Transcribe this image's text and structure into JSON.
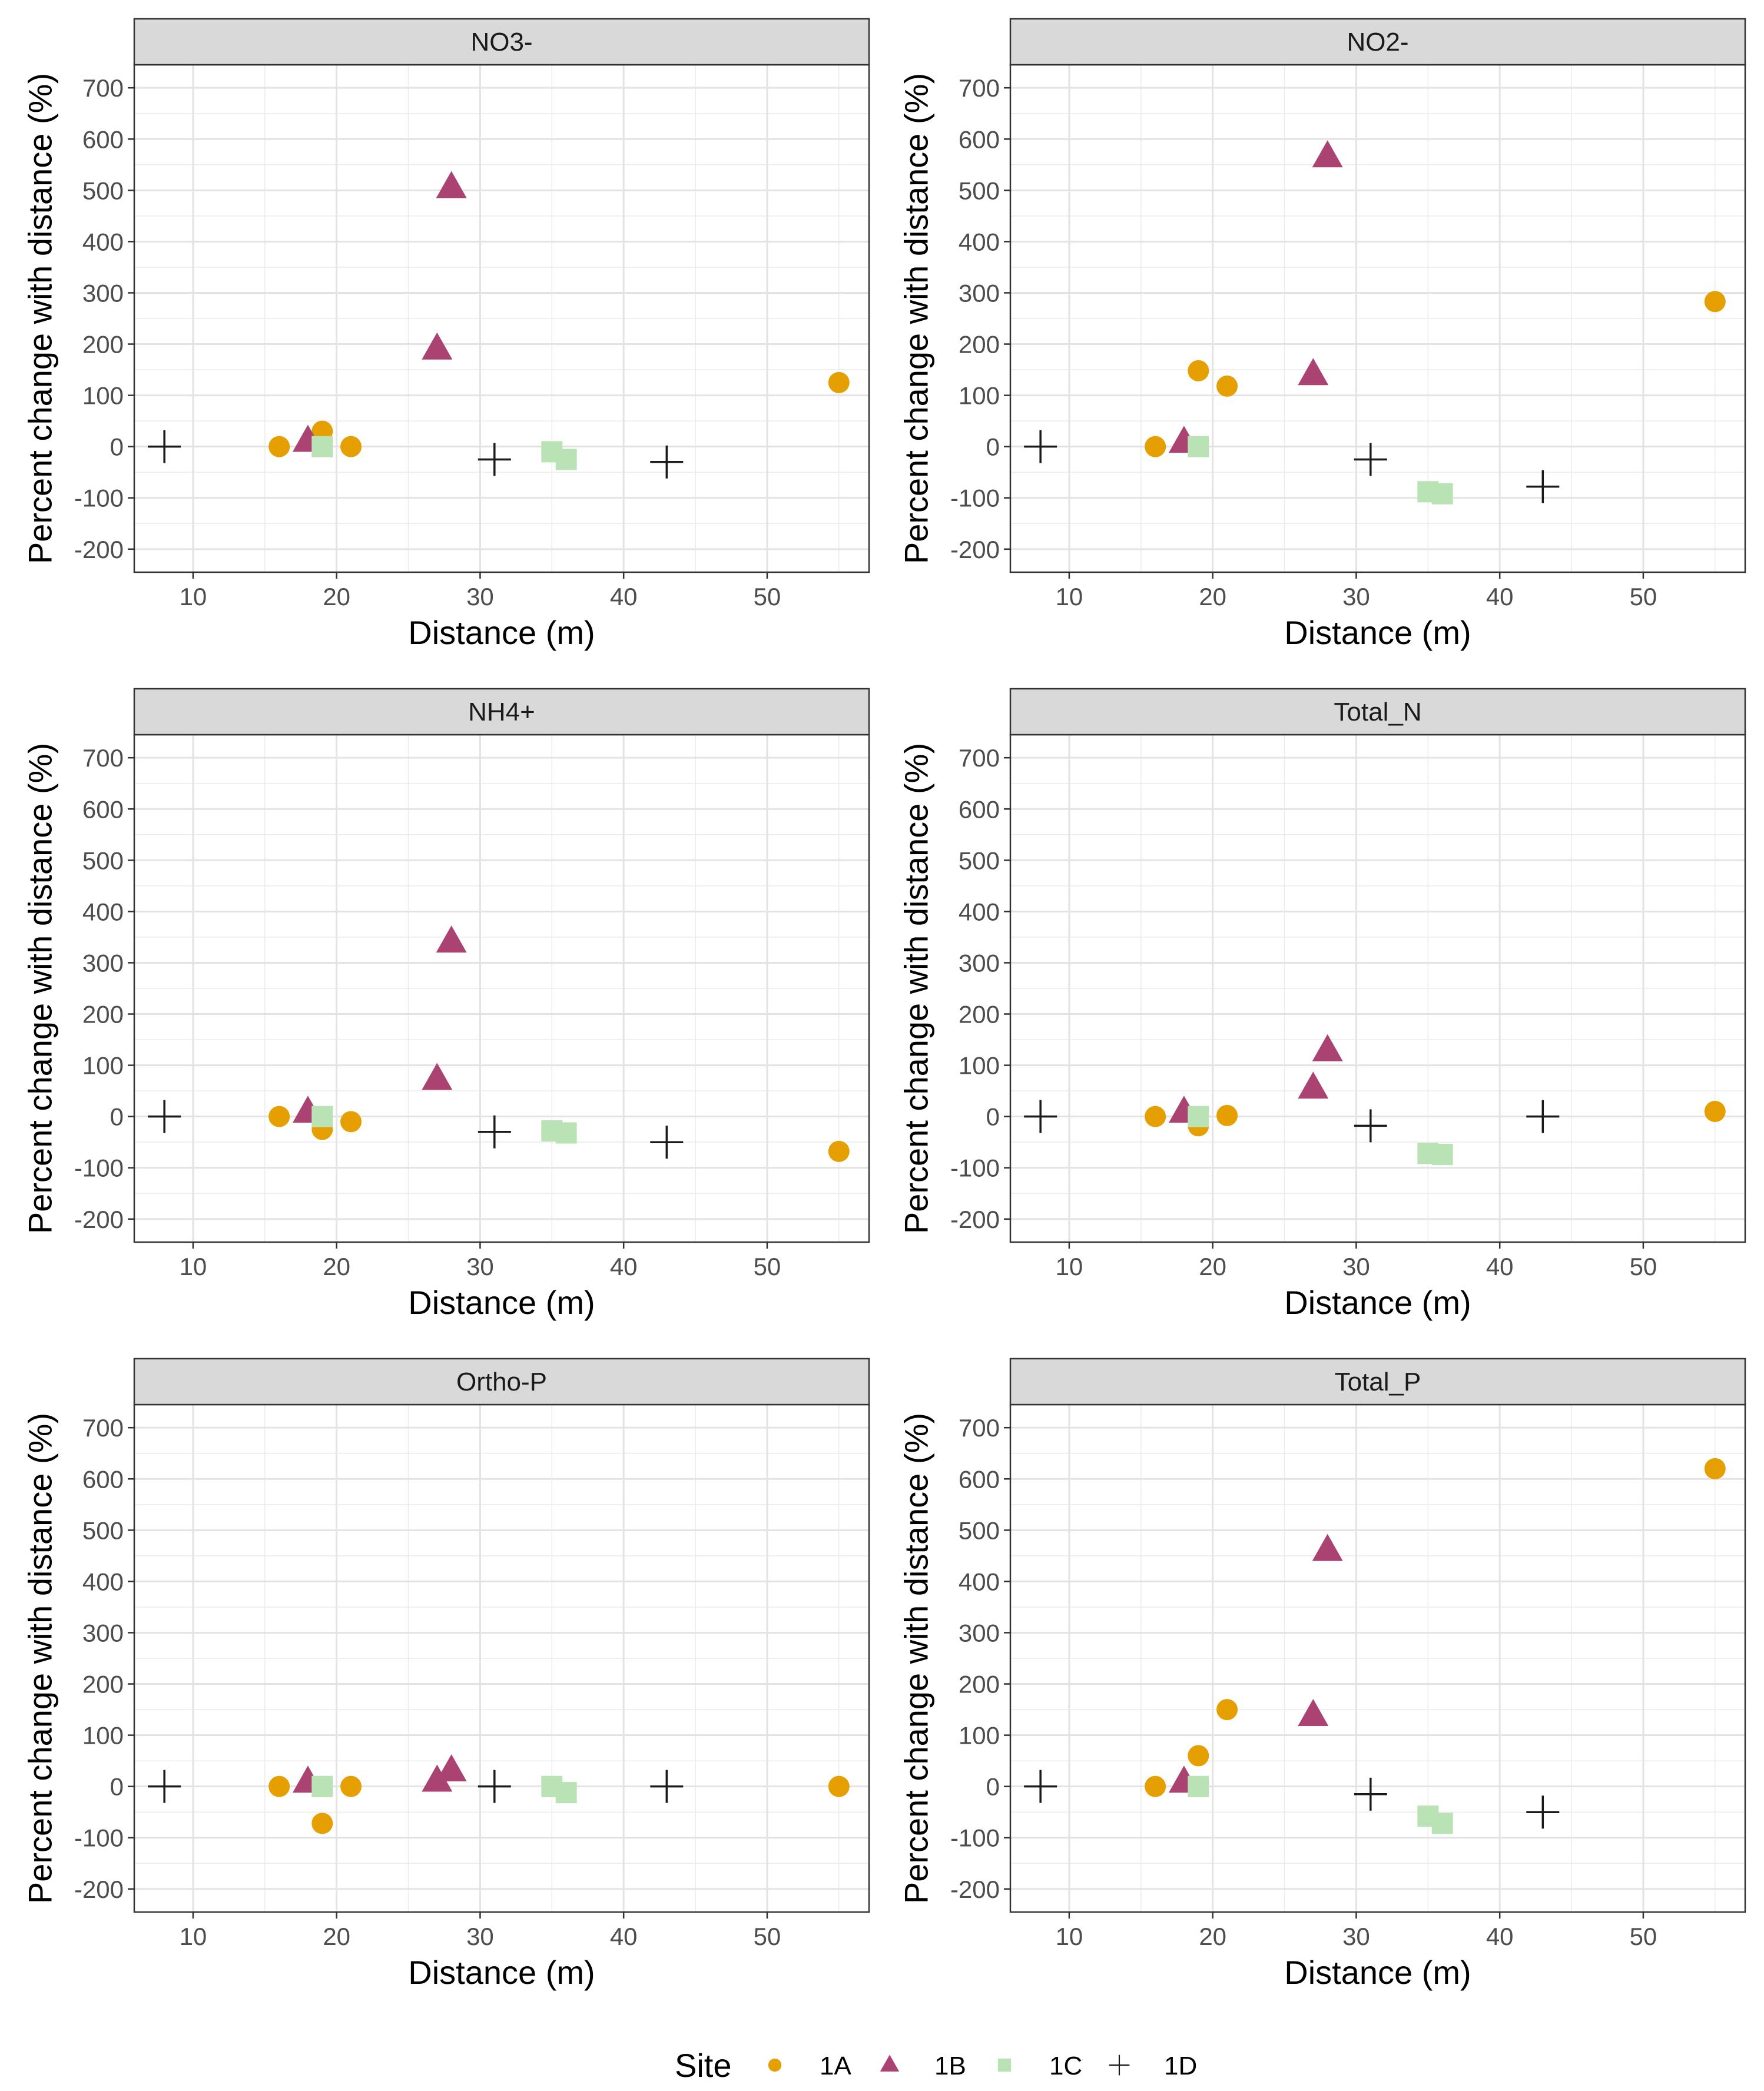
{
  "chart_data": {
    "type": "scatter",
    "facet_layout": "3 rows x 2 columns",
    "xlabel": "Distance (m)",
    "ylabel": "Percent change with distance (%)",
    "xlim": [
      5.9,
      57.1
    ],
    "ylim": [
      -245,
      745
    ],
    "x_ticks": [
      10,
      20,
      30,
      40,
      50
    ],
    "y_ticks": [
      -200,
      -100,
      0,
      100,
      200,
      300,
      400,
      500,
      600,
      700
    ],
    "grid": true,
    "legend": {
      "title": "Site",
      "position": "bottom",
      "entries": [
        {
          "site": "1A",
          "shape": "circle",
          "color": "#E69F00"
        },
        {
          "site": "1B",
          "shape": "triangle",
          "color": "#AA4371"
        },
        {
          "site": "1C",
          "shape": "square",
          "color": "#B9E3B4"
        },
        {
          "site": "1D",
          "shape": "plus",
          "color": "#1a1a1a"
        }
      ]
    },
    "panels": [
      {
        "title": "NO3-",
        "series": [
          {
            "site": "1A",
            "points": [
              [
                16,
                0
              ],
              [
                19,
                30
              ],
              [
                21,
                0
              ],
              [
                55,
                125
              ]
            ]
          },
          {
            "site": "1B",
            "points": [
              [
                18,
                10
              ],
              [
                27,
                190
              ],
              [
                28,
                505
              ]
            ]
          },
          {
            "site": "1C",
            "points": [
              [
                19,
                0
              ],
              [
                35,
                -10
              ],
              [
                36,
                -25
              ]
            ]
          },
          {
            "site": "1D",
            "points": [
              [
                8,
                0
              ],
              [
                31,
                -25
              ],
              [
                43,
                -30
              ]
            ]
          }
        ]
      },
      {
        "title": "NO2-",
        "series": [
          {
            "site": "1A",
            "points": [
              [
                16,
                0
              ],
              [
                19,
                148
              ],
              [
                21,
                118
              ],
              [
                55,
                283
              ]
            ]
          },
          {
            "site": "1B",
            "points": [
              [
                18,
                8
              ],
              [
                27,
                140
              ],
              [
                28,
                565
              ]
            ]
          },
          {
            "site": "1C",
            "points": [
              [
                19,
                0
              ],
              [
                35,
                -88
              ],
              [
                36,
                -92
              ]
            ]
          },
          {
            "site": "1D",
            "points": [
              [
                8,
                0
              ],
              [
                31,
                -25
              ],
              [
                43,
                -78
              ]
            ]
          }
        ]
      },
      {
        "title": "NH4+",
        "series": [
          {
            "site": "1A",
            "points": [
              [
                16,
                0
              ],
              [
                19,
                -25
              ],
              [
                21,
                -10
              ],
              [
                55,
                -68
              ]
            ]
          },
          {
            "site": "1B",
            "points": [
              [
                18,
                8
              ],
              [
                27,
                72
              ],
              [
                28,
                340
              ]
            ]
          },
          {
            "site": "1C",
            "points": [
              [
                19,
                0
              ],
              [
                35,
                -28
              ],
              [
                36,
                -32
              ]
            ]
          },
          {
            "site": "1D",
            "points": [
              [
                8,
                0
              ],
              [
                31,
                -30
              ],
              [
                43,
                -50
              ]
            ]
          }
        ]
      },
      {
        "title": "Total_N",
        "series": [
          {
            "site": "1A",
            "points": [
              [
                16,
                0
              ],
              [
                19,
                -18
              ],
              [
                21,
                2
              ],
              [
                55,
                10
              ]
            ]
          },
          {
            "site": "1B",
            "points": [
              [
                18,
                8
              ],
              [
                27,
                55
              ],
              [
                28,
                128
              ]
            ]
          },
          {
            "site": "1C",
            "points": [
              [
                19,
                0
              ],
              [
                35,
                -72
              ],
              [
                36,
                -74
              ]
            ]
          },
          {
            "site": "1D",
            "points": [
              [
                8,
                0
              ],
              [
                31,
                -18
              ],
              [
                43,
                0
              ]
            ]
          }
        ]
      },
      {
        "title": "Ortho-P",
        "series": [
          {
            "site": "1A",
            "points": [
              [
                16,
                0
              ],
              [
                19,
                -72
              ],
              [
                21,
                0
              ],
              [
                55,
                0
              ]
            ]
          },
          {
            "site": "1B",
            "points": [
              [
                18,
                8
              ],
              [
                27,
                10
              ],
              [
                28,
                30
              ]
            ]
          },
          {
            "site": "1C",
            "points": [
              [
                19,
                0
              ],
              [
                35,
                0
              ],
              [
                36,
                -12
              ]
            ]
          },
          {
            "site": "1D",
            "points": [
              [
                8,
                0
              ],
              [
                31,
                0
              ],
              [
                43,
                0
              ]
            ]
          }
        ]
      },
      {
        "title": "Total_P",
        "series": [
          {
            "site": "1A",
            "points": [
              [
                16,
                0
              ],
              [
                19,
                60
              ],
              [
                21,
                150
              ],
              [
                55,
                620
              ]
            ]
          },
          {
            "site": "1B",
            "points": [
              [
                18,
                8
              ],
              [
                27,
                138
              ],
              [
                28,
                460
              ]
            ]
          },
          {
            "site": "1C",
            "points": [
              [
                19,
                0
              ],
              [
                35,
                -58
              ],
              [
                36,
                -72
              ]
            ]
          },
          {
            "site": "1D",
            "points": [
              [
                8,
                0
              ],
              [
                31,
                -15
              ],
              [
                43,
                -50
              ]
            ]
          }
        ]
      }
    ]
  }
}
